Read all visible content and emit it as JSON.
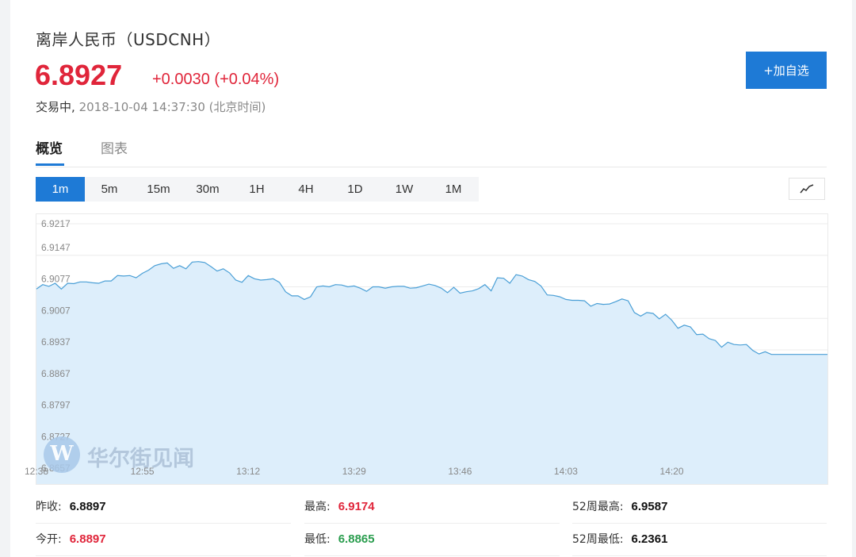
{
  "header": {
    "title": "离岸人民币（USDCNH）",
    "price": "6.8927",
    "change": "+0.0030 (+0.04%)",
    "status": "交易中,",
    "timestamp": "2018-10-04 14:37:30 (北京时间)",
    "add_button": "+加自选"
  },
  "tabs": [
    {
      "label": "概览",
      "active": true
    },
    {
      "label": "图表",
      "active": false
    }
  ],
  "ranges": [
    "1m",
    "5m",
    "15m",
    "30m",
    "1H",
    "4H",
    "1D",
    "1W",
    "1M"
  ],
  "active_range": "1m",
  "watermark": {
    "logo_letter": "W",
    "text": "华尔街见闻"
  },
  "colors": {
    "up": "#e0253a",
    "down": "#2a9d4e",
    "accent": "#1e7ad6",
    "area_fill": "#ddeefb",
    "line": "#4a9fd6"
  },
  "stats": [
    {
      "label": "昨收:",
      "value": "6.8897",
      "tone": "black"
    },
    {
      "label": "最高:",
      "value": "6.9174",
      "tone": "red"
    },
    {
      "label": "52周最高:",
      "value": "6.9587",
      "tone": "black"
    },
    {
      "label": "今开:",
      "value": "6.8897",
      "tone": "red"
    },
    {
      "label": "最低:",
      "value": "6.8865",
      "tone": "green"
    },
    {
      "label": "52周最低:",
      "value": "6.2361",
      "tone": "black"
    }
  ],
  "chart_data": {
    "type": "area",
    "y_ticks": [
      "6.9217",
      "6.9147",
      "6.9077",
      "6.9007",
      "6.8937",
      "6.8867",
      "6.8797",
      "6.8727",
      "6.8657"
    ],
    "ylim": [
      6.8657,
      6.9217
    ],
    "x_ticks": [
      "12:38",
      "12:55",
      "13:12",
      "13:29",
      "13:46",
      "14:03",
      "14:20"
    ],
    "x_tick_minutes": [
      0,
      17,
      34,
      51,
      68,
      85,
      102
    ],
    "x_range_minutes": [
      0,
      127
    ],
    "grid": true,
    "series": [
      {
        "x": [
          0,
          1,
          2,
          3,
          4,
          5,
          6,
          7,
          8,
          9,
          10,
          11,
          12,
          13,
          14,
          15,
          16,
          17,
          18,
          19,
          20,
          21,
          22,
          23,
          24,
          25,
          26,
          27,
          28,
          29,
          30,
          31,
          32,
          33,
          34,
          35,
          36,
          37,
          38,
          39,
          40,
          41,
          42,
          43,
          44,
          45,
          46,
          47,
          48,
          49,
          50,
          51,
          52,
          53,
          54,
          55,
          56,
          57,
          58,
          59,
          60,
          61,
          62,
          63,
          64,
          65,
          66,
          67,
          68,
          69,
          70,
          71,
          72,
          73,
          74,
          75,
          76,
          77,
          78,
          79,
          80,
          81,
          82,
          83,
          84,
          85,
          86,
          87,
          88,
          89,
          90,
          91,
          92,
          93,
          94,
          95,
          96,
          97,
          98,
          99,
          100,
          101,
          102,
          103,
          104,
          105,
          106,
          107,
          108,
          109,
          110,
          111,
          112,
          113,
          114,
          115,
          116,
          117,
          118,
          119,
          120,
          121,
          122,
          123,
          124,
          125,
          126,
          127
        ],
        "y": [
          6.9072,
          6.9082,
          6.9078,
          6.9085,
          6.9072,
          6.9085,
          6.9084,
          6.9088,
          6.9088,
          6.9086,
          6.9085,
          6.909,
          6.909,
          6.9102,
          6.9101,
          6.9102,
          6.9097,
          6.9107,
          6.9114,
          6.9124,
          6.9128,
          6.913,
          6.9118,
          6.9124,
          6.9117,
          6.9132,
          6.9133,
          6.9131,
          6.9122,
          6.9112,
          6.9117,
          6.9108,
          6.9092,
          6.9087,
          6.9102,
          6.9095,
          6.9092,
          6.9093,
          6.9095,
          6.9087,
          6.9066,
          6.9057,
          6.9057,
          6.9049,
          6.9055,
          6.9077,
          6.9079,
          6.9077,
          6.9082,
          6.9081,
          6.9077,
          6.9079,
          6.9074,
          6.9067,
          6.9077,
          6.9077,
          6.9074,
          6.9077,
          6.9078,
          6.9078,
          6.9074,
          6.9075,
          6.9079,
          6.9083,
          6.908,
          6.9074,
          6.9064,
          6.9076,
          6.9063,
          6.9066,
          6.9068,
          6.9073,
          6.9082,
          6.9068,
          6.9097,
          6.9096,
          6.9085,
          6.9104,
          6.9101,
          6.9093,
          6.9089,
          6.9079,
          6.9059,
          6.9058,
          6.9055,
          6.9049,
          6.9047,
          6.9047,
          6.9046,
          6.9034,
          6.904,
          6.9038,
          6.9039,
          6.9044,
          6.905,
          6.9046,
          6.902,
          6.9012,
          6.902,
          6.9018,
          6.9006,
          6.9016,
          6.9003,
          6.8985,
          6.8992,
          6.8988,
          6.8971,
          6.8972,
          6.8962,
          6.8958,
          6.8943,
          6.8954,
          6.8949,
          6.8948,
          6.8949,
          6.8936,
          6.8928,
          6.8933,
          6.8927,
          6.8927,
          6.8927,
          6.8927,
          6.8927,
          6.8927,
          6.8927,
          6.8927,
          6.8927,
          6.8927
        ]
      }
    ]
  }
}
